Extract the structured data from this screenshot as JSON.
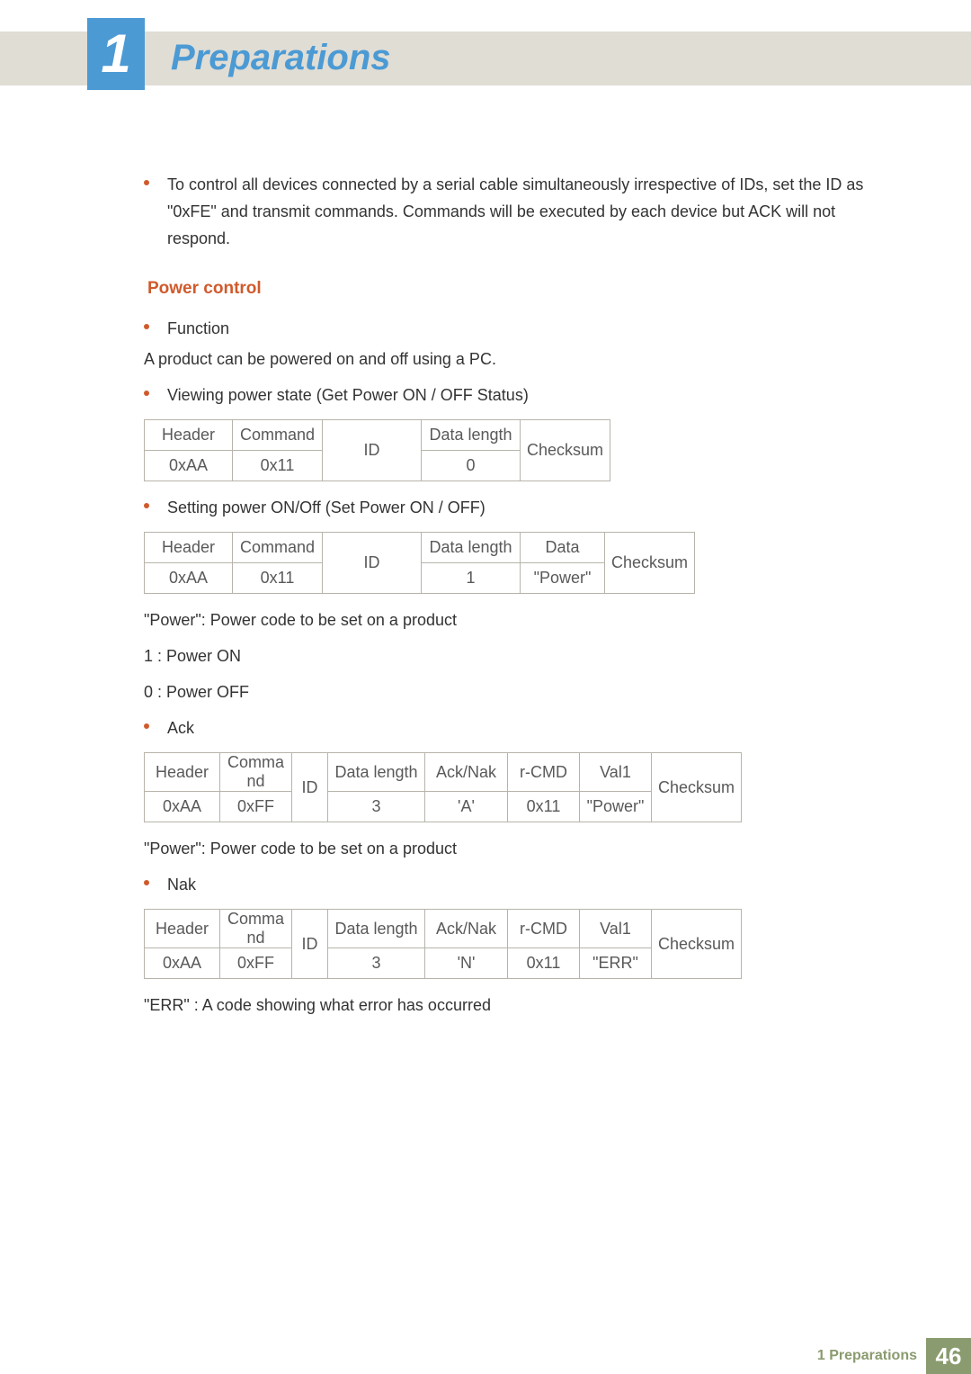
{
  "chapter_number": "1",
  "page_title": "Preparations",
  "intro_bullet": "To control all devices connected by a serial cable simultaneously irrespective of IDs, set the ID as \"0xFE\" and transmit commands. Commands will be executed by each device but ACK will not respond.",
  "section_title": "Power control",
  "function_label": "Function",
  "function_desc": "A product can be powered on and off using a PC.",
  "viewing_label": "Viewing power state (Get Power ON / OFF Status)",
  "table1": {
    "headers": [
      "Header",
      "Command",
      "ID",
      "Data length",
      "Checksum"
    ],
    "row": [
      "0xAA",
      "0x11",
      "",
      "0",
      ""
    ]
  },
  "setting_label": "Setting power ON/Off (Set Power ON / OFF)",
  "table2": {
    "headers": [
      "Header",
      "Command",
      "ID",
      "Data length",
      "Data",
      "Checksum"
    ],
    "row": [
      "0xAA",
      "0x11",
      "",
      "1",
      "\"Power\"",
      ""
    ]
  },
  "power_note": "\"Power\": Power code to be set on a product",
  "power_on": "1 : Power ON",
  "power_off": "0 : Power OFF",
  "ack_label": "Ack",
  "table3": {
    "headers": [
      "Header",
      "Comma\nnd",
      "ID",
      "Data length",
      "Ack/Nak",
      "r-CMD",
      "Val1",
      "Checksum"
    ],
    "row": [
      "0xAA",
      "0xFF",
      "",
      "3",
      "'A'",
      "0x11",
      "\"Power\"",
      ""
    ]
  },
  "power_note2": "\"Power\": Power code to be set on a product",
  "nak_label": "Nak",
  "table4": {
    "headers": [
      "Header",
      "Comma\nnd",
      "ID",
      "Data length",
      "Ack/Nak",
      "r-CMD",
      "Val1",
      "Checksum"
    ],
    "row": [
      "0xAA",
      "0xFF",
      "",
      "3",
      "'N'",
      "0x11",
      "\"ERR\"",
      ""
    ]
  },
  "err_note": "\"ERR\" : A code showing what error has occurred",
  "footer_label": "1 Preparations",
  "footer_page": "46"
}
